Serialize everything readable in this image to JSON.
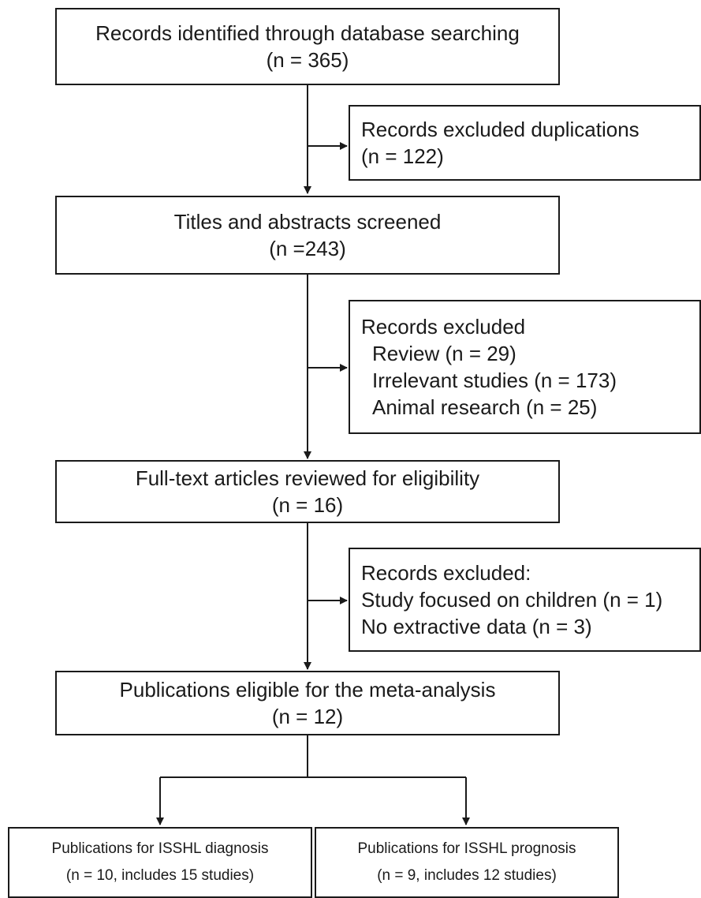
{
  "steps": {
    "identified": {
      "title": "Records identified through database searching",
      "count": "(n = 365)"
    },
    "duplicates": {
      "title": "Records excluded duplications",
      "count": "(n = 122)"
    },
    "screened": {
      "title": "Titles and abstracts screened",
      "count": "(n =243)"
    },
    "excluded_screen": {
      "title": "Records excluded",
      "items": [
        "Review (n = 29)",
        "Irrelevant studies (n = 173)",
        "Animal research (n = 25)"
      ]
    },
    "fulltext": {
      "title": "Full-text articles reviewed for eligibility",
      "count": "(n = 16)"
    },
    "excluded_fulltext": {
      "title": "Records excluded:",
      "items": [
        "Study focused on children (n = 1)",
        "No extractive data (n = 3)"
      ]
    },
    "eligible": {
      "title": "Publications eligible for the meta-analysis",
      "count": "(n = 12)"
    },
    "diagnosis": {
      "title": "Publications for ISSHL diagnosis",
      "count": "(n = 10, includes 15 studies)"
    },
    "prognosis": {
      "title": "Publications for ISSHL prognosis",
      "count": "(n = 9, includes 12 studies)"
    }
  }
}
